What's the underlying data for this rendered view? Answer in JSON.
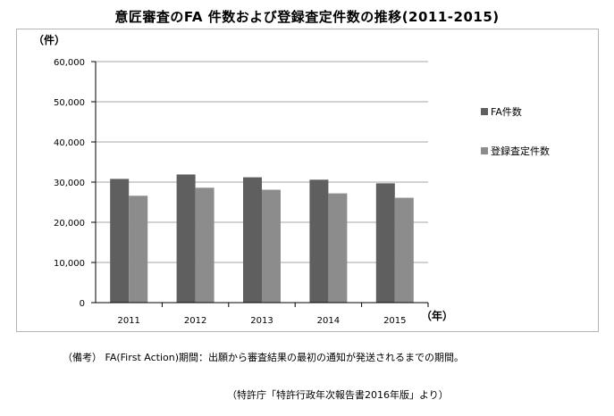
{
  "page": {
    "title": "意匠審査のFA 件数および登録査定件数の推移(2011-2015)",
    "note": "（備考） FA(First Action)期間：出願から審査結果の最初の通知が発送されるまでの期間。",
    "source": "（特許庁「特許行政年次報告書2016年版」より）"
  },
  "colors": {
    "fa": "#5f5f5f",
    "registration": "#8c8c8c",
    "grid": "#a6a6a6",
    "frame": "#b5b5b5"
  },
  "chart_data": {
    "type": "bar",
    "title": "意匠審査のFA 件数および登録査定件数の推移(2011-2015)",
    "ylabel": "（件）",
    "xlabel": "（年）",
    "categories": [
      "2011",
      "2012",
      "2013",
      "2014",
      "2015"
    ],
    "series": [
      {
        "name": "FA件数",
        "values": [
          30800,
          31900,
          31200,
          30600,
          29700
        ]
      },
      {
        "name": "登録査定件数",
        "values": [
          26600,
          28600,
          28100,
          27200,
          26100
        ]
      }
    ],
    "ylim": [
      0,
      60000
    ],
    "yticks": [
      "0",
      "10,000",
      "20,000",
      "30,000",
      "40,000",
      "50,000",
      "60,000"
    ],
    "grid": true,
    "legend_position": "right"
  }
}
